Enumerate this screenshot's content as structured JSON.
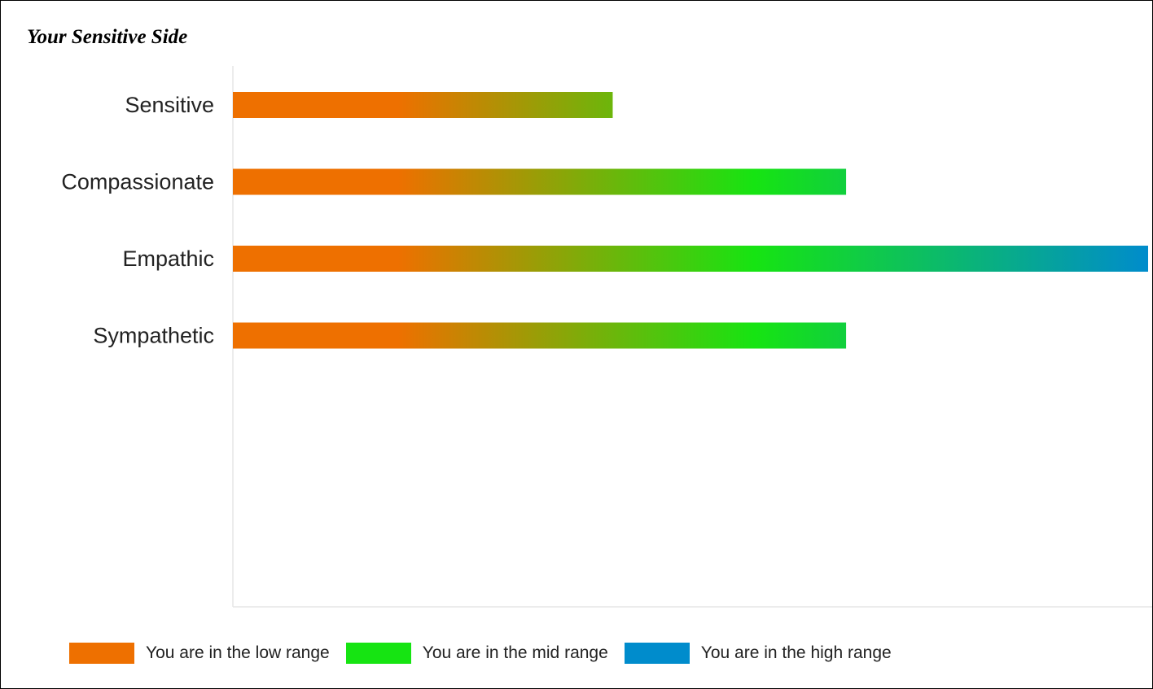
{
  "chart_data": {
    "type": "bar",
    "orientation": "horizontal",
    "title": "Your Sensitive Side",
    "categories": [
      "Sensitive",
      "Compassionate",
      "Empathic",
      "Sympathetic"
    ],
    "values": [
      41.5,
      67,
      100,
      67
    ],
    "xlim": [
      0,
      100
    ],
    "xlabel": "",
    "ylabel": "",
    "grid": false,
    "legend_position": "bottom-left",
    "gradient_stops": [
      {
        "at": 0,
        "color": "#ee7000"
      },
      {
        "at": 0.18,
        "color": "#ee7000"
      },
      {
        "at": 0.57,
        "color": "#16e412"
      },
      {
        "at": 1,
        "color": "#008ccc"
      }
    ],
    "legend": [
      {
        "label": "You are in the low range",
        "color": "#ee7000"
      },
      {
        "label": "You are in the mid range",
        "color": "#16e412"
      },
      {
        "label": "You are in the high range",
        "color": "#008ccc"
      }
    ]
  }
}
